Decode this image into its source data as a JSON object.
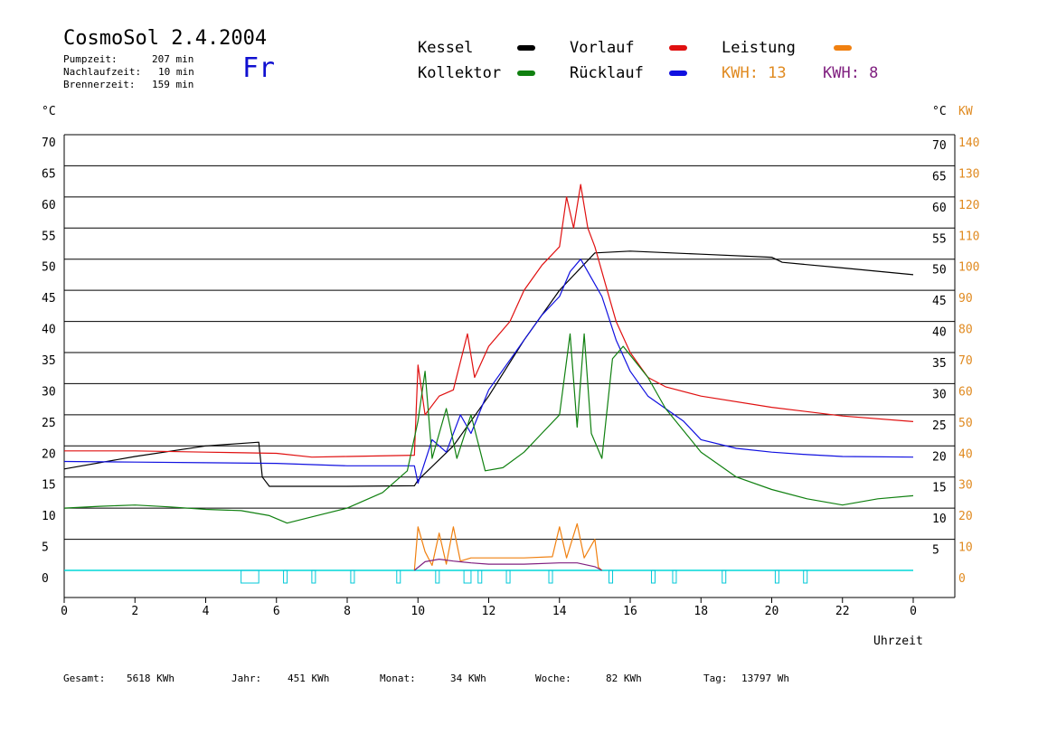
{
  "header": {
    "title": "CosmoSol 2.4.2004",
    "day": "Fr",
    "pump_label": "Pumpzeit:",
    "pump_value": "207 min",
    "nachlauf_label": "Nachlaufzeit:",
    "nachlauf_value": "10 min",
    "brenner_label": "Brennerzeit:",
    "brenner_value": "159 min"
  },
  "legend": {
    "kessel": {
      "label": "Kessel",
      "color": "#000000"
    },
    "vorlauf": {
      "label": "Vorlauf",
      "color": "#e01010"
    },
    "leistung": {
      "label": "Leistung",
      "color": "#f08010"
    },
    "kollektor": {
      "label": "Kollektor",
      "color": "#108010"
    },
    "ruecklauf": {
      "label": "Rücklauf",
      "color": "#1010e0"
    },
    "kwh1": {
      "label": "KWH: 13",
      "color": "#e08a20"
    },
    "kwh2": {
      "label": "KWH: 8",
      "color": "#802080"
    }
  },
  "axis": {
    "left_unit": "°C",
    "right_unit_c": "°C",
    "right_unit_kw": "KW",
    "xlabel": "Uhrzeit"
  },
  "footer": {
    "gesamt_label": "Gesamt:",
    "gesamt_value": "5618 KWh",
    "jahr_label": "Jahr:",
    "jahr_value": "451 KWh",
    "monat_label": "Monat:",
    "monat_value": "34 KWh",
    "woche_label": "Woche:",
    "woche_value": "82 KWh",
    "tag_label": "Tag:",
    "tag_value": "13797 Wh"
  },
  "chart_data": {
    "type": "line",
    "xlim": [
      0,
      24
    ],
    "ylim": [
      0,
      70
    ],
    "y2lim": [
      0,
      140
    ],
    "grid": true,
    "x_ticks": [
      "0",
      "2",
      "4",
      "6",
      "8",
      "10",
      "12",
      "14",
      "16",
      "18",
      "20",
      "22",
      "0"
    ],
    "y_ticks": [
      "0",
      "5",
      "10",
      "15",
      "20",
      "25",
      "30",
      "35",
      "40",
      "45",
      "50",
      "55",
      "60",
      "65",
      "70"
    ],
    "y_right_ticks": [
      "5",
      "10",
      "15",
      "20",
      "25",
      "30",
      "35",
      "40",
      "45",
      "50",
      "55",
      "60",
      "65",
      "70"
    ],
    "kw_ticks": [
      "0",
      "10",
      "20",
      "30",
      "40",
      "50",
      "60",
      "70",
      "80",
      "90",
      "100",
      "110",
      "120",
      "130",
      "140"
    ],
    "series": [
      {
        "name": "Kessel",
        "color": "#000000",
        "points": [
          [
            0,
            16.3
          ],
          [
            2,
            18.3
          ],
          [
            4,
            20
          ],
          [
            5.5,
            20.6
          ],
          [
            5.6,
            15
          ],
          [
            5.8,
            13.5
          ],
          [
            8,
            13.5
          ],
          [
            9.9,
            13.6
          ],
          [
            10,
            14.5
          ],
          [
            11,
            20
          ],
          [
            12,
            28
          ],
          [
            13,
            37
          ],
          [
            14,
            45
          ],
          [
            15,
            51
          ],
          [
            16,
            51.3
          ],
          [
            18,
            50.8
          ],
          [
            20,
            50.3
          ],
          [
            20.3,
            49.5
          ],
          [
            22,
            48.6
          ],
          [
            24,
            47.5
          ]
        ]
      },
      {
        "name": "Vorlauf",
        "color": "#e01010",
        "points": [
          [
            0,
            19.2
          ],
          [
            2,
            19.2
          ],
          [
            4,
            19
          ],
          [
            6,
            18.8
          ],
          [
            7,
            18.2
          ],
          [
            8,
            18.3
          ],
          [
            9.9,
            18.5
          ],
          [
            10,
            33
          ],
          [
            10.2,
            25
          ],
          [
            10.6,
            28
          ],
          [
            11,
            29
          ],
          [
            11.4,
            38
          ],
          [
            11.6,
            31
          ],
          [
            12,
            36
          ],
          [
            12.6,
            40
          ],
          [
            13,
            45
          ],
          [
            13.5,
            49
          ],
          [
            14,
            52
          ],
          [
            14.2,
            60
          ],
          [
            14.4,
            55
          ],
          [
            14.6,
            62
          ],
          [
            14.8,
            55
          ],
          [
            15,
            52
          ],
          [
            15.3,
            46
          ],
          [
            15.6,
            40
          ],
          [
            16,
            35
          ],
          [
            16.5,
            31
          ],
          [
            17,
            29.5
          ],
          [
            18,
            28
          ],
          [
            20,
            26.2
          ],
          [
            22,
            24.8
          ],
          [
            24,
            23.9
          ]
        ]
      },
      {
        "name": "Rücklauf",
        "color": "#1010e0",
        "points": [
          [
            0,
            17.5
          ],
          [
            2,
            17.4
          ],
          [
            4,
            17.3
          ],
          [
            6,
            17.2
          ],
          [
            8,
            16.8
          ],
          [
            9.9,
            16.8
          ],
          [
            10,
            14
          ],
          [
            10.4,
            21
          ],
          [
            10.8,
            19
          ],
          [
            11.2,
            25
          ],
          [
            11.5,
            22
          ],
          [
            12,
            29
          ],
          [
            13,
            37
          ],
          [
            13.5,
            41
          ],
          [
            14,
            44
          ],
          [
            14.3,
            48
          ],
          [
            14.6,
            50
          ],
          [
            14.9,
            47
          ],
          [
            15.2,
            44
          ],
          [
            15.6,
            37
          ],
          [
            16,
            32
          ],
          [
            16.5,
            28
          ],
          [
            17,
            26
          ],
          [
            17.5,
            24
          ],
          [
            18,
            21
          ],
          [
            19,
            19.6
          ],
          [
            20,
            19
          ],
          [
            21,
            18.6
          ],
          [
            22,
            18.3
          ],
          [
            24,
            18.2
          ]
        ]
      },
      {
        "name": "Kollektor",
        "color": "#108010",
        "points": [
          [
            0,
            10
          ],
          [
            1,
            10.3
          ],
          [
            2,
            10.5
          ],
          [
            3,
            10.2
          ],
          [
            4,
            9.8
          ],
          [
            5,
            9.6
          ],
          [
            5.8,
            8.8
          ],
          [
            6.3,
            7.6
          ],
          [
            7,
            8.6
          ],
          [
            8,
            10
          ],
          [
            9,
            12.5
          ],
          [
            9.7,
            16
          ],
          [
            10,
            24
          ],
          [
            10.2,
            32
          ],
          [
            10.4,
            18
          ],
          [
            10.8,
            26
          ],
          [
            11.1,
            18
          ],
          [
            11.5,
            25
          ],
          [
            11.9,
            16
          ],
          [
            12.4,
            16.5
          ],
          [
            13,
            19
          ],
          [
            13.5,
            22
          ],
          [
            14,
            25
          ],
          [
            14.3,
            38
          ],
          [
            14.5,
            23
          ],
          [
            14.7,
            38
          ],
          [
            14.9,
            22
          ],
          [
            15.2,
            18
          ],
          [
            15.5,
            34
          ],
          [
            15.8,
            36
          ],
          [
            16.5,
            31
          ],
          [
            17,
            26
          ],
          [
            18,
            19
          ],
          [
            19,
            15
          ],
          [
            20,
            13
          ],
          [
            21,
            11.5
          ],
          [
            22,
            10.5
          ],
          [
            23,
            11.5
          ],
          [
            24,
            12
          ]
        ]
      },
      {
        "name": "Leistung",
        "color": "#f08010",
        "points": [
          [
            9.9,
            0
          ],
          [
            10,
            7
          ],
          [
            10.2,
            3
          ],
          [
            10.4,
            0.8
          ],
          [
            10.6,
            6
          ],
          [
            10.8,
            1
          ],
          [
            11,
            7
          ],
          [
            11.2,
            1.5
          ],
          [
            11.5,
            2
          ],
          [
            12,
            2
          ],
          [
            13,
            2
          ],
          [
            13.8,
            2.2
          ],
          [
            14,
            7
          ],
          [
            14.2,
            2
          ],
          [
            14.5,
            7.5
          ],
          [
            14.7,
            2
          ],
          [
            15,
            5
          ],
          [
            15.1,
            0.5
          ],
          [
            15.2,
            0
          ]
        ]
      },
      {
        "name": "KWH 8",
        "color": "#802080",
        "points": [
          [
            9.9,
            0
          ],
          [
            10.2,
            1.4
          ],
          [
            10.6,
            1.8
          ],
          [
            11,
            1.5
          ],
          [
            11.5,
            1.2
          ],
          [
            12,
            1
          ],
          [
            13,
            1
          ],
          [
            14,
            1.2
          ],
          [
            14.5,
            1.2
          ],
          [
            15,
            0.6
          ],
          [
            15.2,
            0
          ]
        ]
      }
    ],
    "pump_marks": [
      [
        5,
        5.5
      ],
      [
        6.2,
        6.3
      ],
      [
        7,
        7.1
      ],
      [
        8.1,
        8.2
      ],
      [
        9.4,
        9.5
      ],
      [
        10.5,
        10.6
      ],
      [
        11.3,
        11.5
      ],
      [
        11.7,
        11.8
      ],
      [
        12.5,
        12.6
      ],
      [
        13.7,
        13.8
      ],
      [
        15.4,
        15.5
      ],
      [
        16.6,
        16.7
      ],
      [
        17.2,
        17.3
      ],
      [
        18.6,
        18.7
      ],
      [
        20.1,
        20.2
      ],
      [
        20.9,
        21
      ]
    ]
  }
}
